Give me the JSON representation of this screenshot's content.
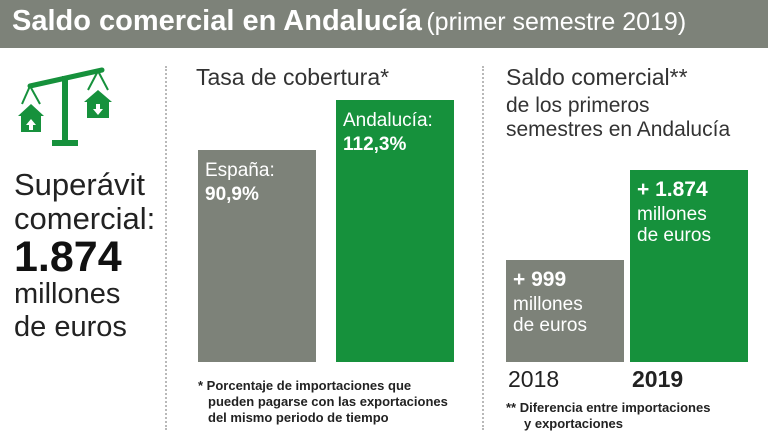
{
  "header": {
    "title": "Saldo comercial en Andalucía",
    "subtitle": "(primer semestre 2019)"
  },
  "colors": {
    "gray": "#7d8279",
    "green": "#16913c",
    "header_bg": "#7d8279"
  },
  "icon": "trade-balance-scale-icon",
  "summary": {
    "label_line1": "Superávit",
    "label_line2": "comercial:",
    "value": "1.874",
    "unit_line1": "millones",
    "unit_line2": "de euros"
  },
  "chart_data": [
    {
      "type": "bar",
      "title": "Tasa de cobertura*",
      "categories": [
        "España",
        "Andalucía"
      ],
      "values": [
        90.9,
        112.3
      ],
      "labels": [
        "España:",
        "Andalucía:"
      ],
      "value_labels": [
        "90,9%",
        "112,3%"
      ],
      "colors": [
        "#7d8279",
        "#16913c"
      ],
      "footnote": [
        "* Porcentaje de importaciones que",
        "pueden pagarse con las exportaciones",
        "del mismo periodo de tiempo"
      ]
    },
    {
      "type": "bar",
      "title": "Saldo comercial**",
      "subtitle_line1": "de los primeros",
      "subtitle_line2": "semestres en Andalucía",
      "categories": [
        "2018",
        "2019"
      ],
      "values": [
        999,
        1874
      ],
      "value_labels": [
        "+ 999",
        "+ 1.874"
      ],
      "unit_line1": "millones",
      "unit_line2": "de euros",
      "colors": [
        "#7d8279",
        "#16913c"
      ],
      "footnote": [
        "** Diferencia entre importaciones",
        "y exportaciones"
      ]
    }
  ]
}
